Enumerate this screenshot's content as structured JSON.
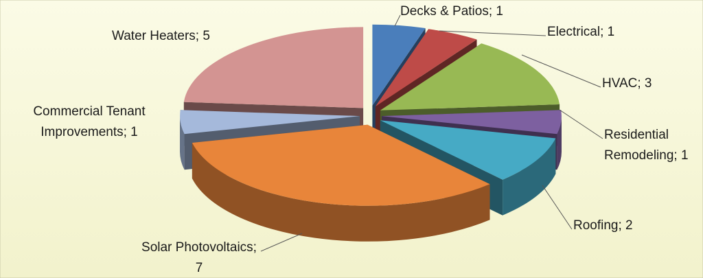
{
  "chart_data": {
    "type": "pie3d",
    "values": [
      1,
      1,
      3,
      1,
      2,
      7,
      1,
      5
    ],
    "value_labels": [
      "Decks & Patios; 1",
      "Electrical; 1",
      "HVAC; 3",
      "Residential\nRemodeling; 1",
      "Roofing; 2",
      "Solar Photovoltaics;\n7",
      "Commercial Tenant\nImprovements; 1",
      "Water Heaters; 5"
    ],
    "colors": [
      "#4a7ebb",
      "#be4b48",
      "#98b954",
      "#7d60a0",
      "#46aac5",
      "#e8853a",
      "#a5b9db",
      "#d39492"
    ]
  }
}
